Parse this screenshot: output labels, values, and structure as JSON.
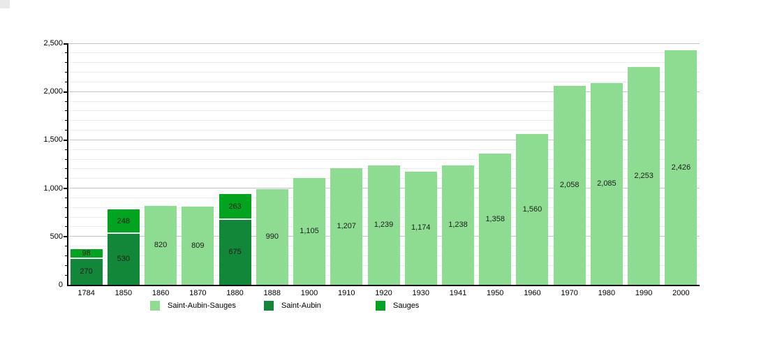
{
  "page": {
    "background": "#ffffff",
    "corner_artifact_color": "#e9e9e9"
  },
  "chart_data": {
    "type": "bar",
    "stacked": true,
    "title": "",
    "xlabel": "",
    "ylabel": "",
    "categories": [
      "1784",
      "1850",
      "1860",
      "1870",
      "1880",
      "1888",
      "1900",
      "1910",
      "1920",
      "1930",
      "1941",
      "1950",
      "1960",
      "1970",
      "1980",
      "1990",
      "2000"
    ],
    "series": [
      {
        "name": "Saint-Aubin-Sauges",
        "color": "#8edc92",
        "values": [
          null,
          null,
          820,
          809,
          null,
          990,
          1105,
          1207,
          1239,
          1174,
          1238,
          1358,
          1560,
          2058,
          2085,
          2253,
          2426
        ]
      },
      {
        "name": "Saint-Aubin",
        "color": "#128639",
        "values": [
          270,
          530,
          null,
          null,
          675,
          null,
          null,
          null,
          null,
          null,
          null,
          null,
          null,
          null,
          null,
          null,
          null
        ]
      },
      {
        "name": "Sauges",
        "color": "#00a41e",
        "values": [
          98,
          248,
          null,
          null,
          263,
          null,
          null,
          null,
          null,
          null,
          null,
          null,
          null,
          null,
          null,
          null,
          null
        ]
      }
    ],
    "ylim": [
      0,
      2500
    ],
    "yticks": [
      0,
      500,
      1000,
      1500,
      2000,
      2500
    ],
    "minor_tick_step": 100,
    "grid": true,
    "legend_position": "bottom",
    "axis_color": "#000000",
    "major_grid_color": "#c6c6c6",
    "minor_grid_color": "#ededed"
  }
}
